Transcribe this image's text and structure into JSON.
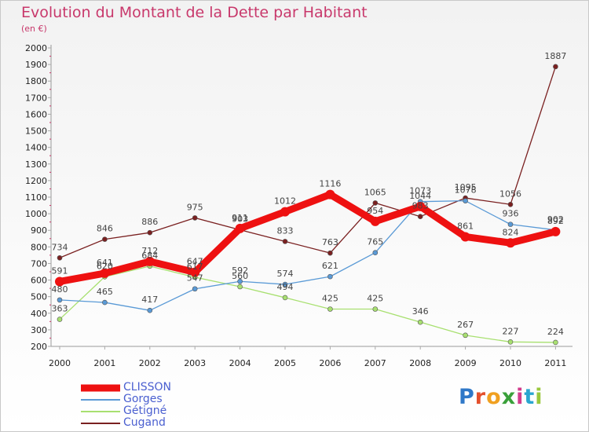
{
  "header": {
    "title": "Evolution du Montant de la Dette par Habitant",
    "unit": "(en €)"
  },
  "logo": {
    "text": "Proxiti",
    "letter_colors": [
      "#2f78c8",
      "#e4502c",
      "#f0a020",
      "#3aa03a",
      "#d23c8c",
      "#2aa6d0",
      "#9ac83c"
    ]
  },
  "chart_data": {
    "type": "line",
    "title": "Evolution du Montant de la Dette par Habitant",
    "ylabel": "(en €)",
    "xlabel": "",
    "x": [
      "2000",
      "2001",
      "2002",
      "2003",
      "2004",
      "2005",
      "2006",
      "2007",
      "2008",
      "2009",
      "2010",
      "2011"
    ],
    "ylim": [
      200,
      2000
    ],
    "yticks": [
      200,
      300,
      400,
      500,
      600,
      700,
      800,
      900,
      1000,
      1100,
      1200,
      1300,
      1400,
      1500,
      1600,
      1700,
      1800,
      1900,
      2000
    ],
    "grid": false,
    "legend": "bottom-left",
    "series": [
      {
        "name": "Cugand",
        "color": "#7a2020",
        "values": [
          734,
          846,
          886,
          975,
          903,
          833,
          763,
          1065,
          983,
          1095,
          1056,
          1887
        ]
      },
      {
        "name": "Gétigné",
        "color": "#a8e070",
        "values": [
          363,
          620,
          684,
          617,
          560,
          494,
          425,
          425,
          346,
          267,
          227,
          224
        ]
      },
      {
        "name": "Gorges",
        "color": "#5a9ad6",
        "values": [
          480,
          465,
          417,
          547,
          592,
          574,
          621,
          765,
          1073,
          1078,
          936,
          902
        ]
      },
      {
        "name": "CLISSON",
        "color": "#ee1111",
        "values": [
          591,
          641,
          712,
          647,
          911,
          1012,
          1116,
          954,
          1044,
          861,
          824,
          892
        ]
      }
    ]
  }
}
